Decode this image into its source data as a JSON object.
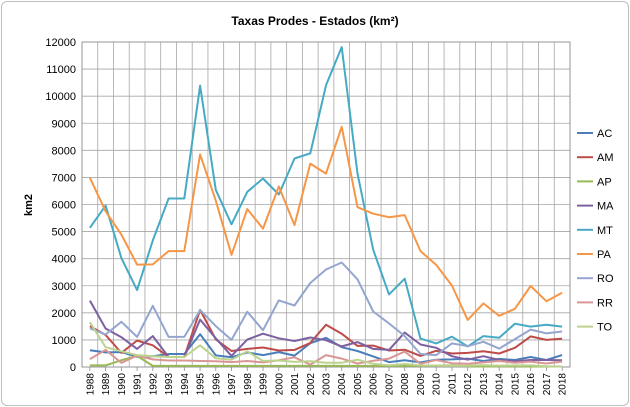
{
  "chart_data": {
    "type": "line",
    "title": "Taxas Prodes - Estados (km²)",
    "xlabel": "",
    "ylabel": "km2",
    "ylim": [
      0,
      12000
    ],
    "yticks": [
      0,
      1000,
      2000,
      3000,
      4000,
      5000,
      6000,
      7000,
      8000,
      9000,
      10000,
      11000,
      12000
    ],
    "grid": true,
    "legend_position": "right",
    "categories": [
      "1988",
      "1989",
      "1990",
      "1991",
      "1992",
      "1993",
      "1994",
      "1995",
      "1996",
      "1997",
      "1998",
      "1999",
      "2000",
      "2001",
      "2002",
      "2003",
      "2004",
      "2005",
      "2006",
      "2007",
      "2008",
      "2009",
      "2010",
      "2011",
      "2012",
      "2013",
      "2014",
      "2015",
      "2016",
      "2017",
      "2018"
    ],
    "series": [
      {
        "name": "AC",
        "color": "#4a7ebb",
        "values": [
          620,
          540,
          550,
          380,
          400,
          480,
          480,
          1210,
          430,
          360,
          540,
          440,
          550,
          420,
          880,
          1080,
          730,
          590,
          390,
          180,
          250,
          170,
          270,
          280,
          310,
          220,
          300,
          260,
          370,
          260,
          440
        ]
      },
      {
        "name": "AM",
        "color": "#be4b48",
        "values": [
          1510,
          1180,
          520,
          980,
          800,
          370,
          370,
          2110,
          1020,
          590,
          670,
          720,
          610,
          630,
          890,
          1560,
          1230,
          780,
          790,
          610,
          640,
          410,
          600,
          500,
          520,
          580,
          500,
          710,
          1130,
          1000,
          1050
        ]
      },
      {
        "name": "AP",
        "color": "#98b954",
        "values": [
          60,
          60,
          250,
          410,
          40,
          40,
          40,
          40,
          40,
          40,
          40,
          40,
          40,
          40,
          40,
          40,
          40,
          40,
          40,
          40,
          40,
          40,
          50,
          60,
          30,
          20,
          30,
          30,
          20,
          20,
          20
        ]
      },
      {
        "name": "MA",
        "color": "#7d60a0",
        "values": [
          2450,
          1420,
          1100,
          670,
          1140,
          370,
          370,
          1750,
          1060,
          410,
          1010,
          1230,
          1060,
          960,
          1090,
          990,
          760,
          920,
          670,
          630,
          1270,
          830,
          710,
          400,
          270,
          400,
          260,
          210,
          260,
          260,
          250
        ]
      },
      {
        "name": "MT",
        "color": "#46aac5",
        "values": [
          5140,
          5960,
          4020,
          2840,
          4670,
          6220,
          6220,
          10390,
          6540,
          5270,
          6470,
          6960,
          6370,
          7700,
          7890,
          10400,
          11810,
          7140,
          4330,
          2680,
          3260,
          1050,
          870,
          1120,
          760,
          1140,
          1080,
          1600,
          1490,
          1560,
          1490
        ]
      },
      {
        "name": "PA",
        "color": "#f79646",
        "values": [
          6990,
          5750,
          4890,
          3780,
          3790,
          4280,
          4280,
          7850,
          6140,
          4140,
          5830,
          5110,
          6670,
          5240,
          7510,
          7140,
          8870,
          5900,
          5660,
          5530,
          5610,
          4280,
          3770,
          3010,
          1740,
          2350,
          1890,
          2150,
          2990,
          2430,
          2740
        ]
      },
      {
        "name": "RO",
        "color": "#94a6cf",
        "values": [
          1430,
          1200,
          1670,
          1110,
          2260,
          1110,
          1110,
          2100,
          1510,
          1000,
          2040,
          1360,
          2460,
          2270,
          3100,
          3600,
          3860,
          3240,
          2050,
          1610,
          1140,
          480,
          440,
          870,
          770,
          930,
          680,
          1030,
          1380,
          1240,
          1310
        ]
      },
      {
        "name": "RR",
        "color": "#d99694",
        "values": [
          290,
          630,
          150,
          420,
          280,
          240,
          240,
          220,
          210,
          180,
          220,
          170,
          250,
          360,
          90,
          440,
          310,
          130,
          230,
          310,
          570,
          120,
          260,
          140,
          120,
          170,
          220,
          160,
          200,
          130,
          200
        ]
      },
      {
        "name": "TO",
        "color": "#bcd38e",
        "values": [
          1650,
          730,
          580,
          440,
          400,
          370,
          370,
          800,
          320,
          270,
          580,
          220,
          240,
          190,
          210,
          160,
          160,
          270,
          120,
          60,
          110,
          60,
          50,
          40,
          50,
          70,
          50,
          60,
          60,
          30,
          20
        ]
      }
    ]
  }
}
